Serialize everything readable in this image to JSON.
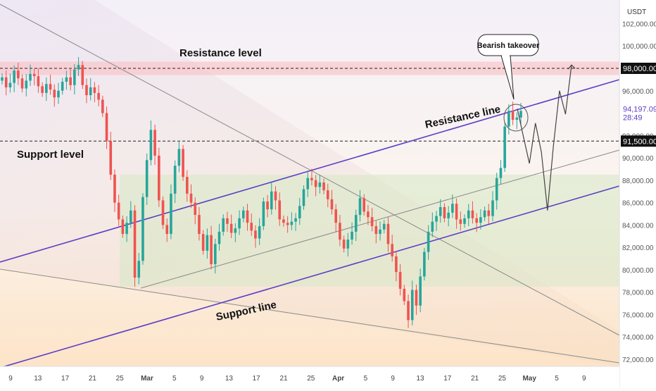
{
  "chart_data": {
    "type": "candlestick",
    "currency": "USDT",
    "x": {
      "ticks": [
        "9",
        "13",
        "17",
        "21",
        "25",
        "Mar",
        "5",
        "9",
        "13",
        "17",
        "21",
        "25",
        "Apr",
        "5",
        "9",
        "13",
        "17",
        "21",
        "25",
        "May",
        "5",
        "9"
      ]
    },
    "y": {
      "range": [
        71000,
        103000
      ],
      "ticks": [
        "72,000.00",
        "74,000.00",
        "76,000.00",
        "78,000.00",
        "80,000.00",
        "82,000.00",
        "84,000.00",
        "86,000.00",
        "88,000.00",
        "90,000.00",
        "92,000.00",
        "94,000.00",
        "96,000.00",
        "98,000.00",
        "100,000.00",
        "102,000.00"
      ]
    },
    "price_series": [
      97200,
      96300,
      96700,
      97800,
      97100,
      96200,
      96900,
      97500,
      97300,
      96400,
      95800,
      96600,
      96100,
      95400,
      96000,
      96800,
      97200,
      96500,
      97900,
      98300,
      96500,
      95600,
      96300,
      95800,
      95200,
      94000,
      91500,
      88500,
      86000,
      84500,
      83200,
      84200,
      85300,
      79300,
      80800,
      86500,
      89800,
      92500,
      90200,
      86200,
      84000,
      83200,
      86800,
      89300,
      90800,
      88300,
      86800,
      86000,
      84900,
      83200,
      81700,
      83100,
      80500,
      82300,
      83400,
      84600,
      84100,
      83300,
      83700,
      84600,
      85300,
      84200,
      83500,
      82800,
      83900,
      86100,
      85400,
      87000,
      86200,
      84500,
      84200,
      84000,
      84300,
      84600,
      85700,
      87200,
      88200,
      88000,
      87400,
      87800,
      87100,
      86300,
      85400,
      84200,
      82700,
      81900,
      82700,
      83400,
      84900,
      86400,
      85200,
      84700,
      83900,
      83200,
      83600,
      84100,
      82300,
      81200,
      79800,
      78300,
      77200,
      75500,
      78200,
      76800,
      79400,
      81600,
      83400,
      84300,
      84800,
      85600,
      84600,
      85100,
      85900,
      84500,
      84100,
      84600,
      85300,
      84600,
      84200,
      84700,
      85300,
      84800,
      86200,
      88200,
      89100,
      92800,
      94200,
      93400,
      93600,
      94197
    ],
    "levels": [
      {
        "label": "98,000.00",
        "value": 98000,
        "style": "dashed"
      },
      {
        "label": "91,500.00",
        "value": 91500,
        "style": "dashed"
      }
    ],
    "current_price": {
      "label": "94,197.09",
      "value": 94197.09,
      "countdown": "28:49"
    },
    "resistance_zone": [
      97400,
      98600
    ],
    "range_box": [
      78500,
      88500
    ],
    "projection": [
      94400,
      91900,
      89500,
      93100,
      90500,
      85300,
      91100,
      96000,
      93900,
      98300
    ],
    "annotations": {
      "resistance_level": "Resistance level",
      "support_level": "Support level",
      "resistance_line": "Resistance line",
      "support_line": "Support line",
      "callout": "Bearish takeover"
    },
    "colors": {
      "up": "#26a69a",
      "down": "#ef5350",
      "channel": "#5b3fc4",
      "zone": "#f8c8cc",
      "box": "#d9e8c8"
    }
  }
}
